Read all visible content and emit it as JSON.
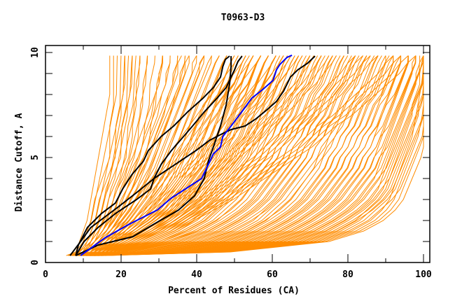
{
  "chart_data": {
    "type": "line",
    "title": "T0963-D3",
    "xlabel": "Percent of Residues (CA)",
    "ylabel": "Distance Cutoff, A",
    "xlim": [
      0,
      100
    ],
    "ylim": [
      0,
      10
    ],
    "x_ticks": [
      0,
      20,
      40,
      60,
      80,
      100
    ],
    "x_minor_ticks": [
      10,
      30,
      50,
      70,
      90
    ],
    "y_ticks": [
      0,
      5,
      10
    ],
    "y_minor_ticks": [
      1,
      2,
      3,
      4,
      6,
      7,
      8,
      9
    ],
    "grid": false,
    "legend": "none",
    "colors": {
      "other_models": "#ff8c00",
      "highlight_black": "#000000",
      "highlight_blue": "#0000ff"
    },
    "cutoff_levels": [
      0.33,
      0.5,
      1,
      1.5,
      2,
      2.5,
      3,
      3.5,
      4,
      4.5,
      5,
      5.5,
      6,
      6.5,
      7,
      7.5,
      8,
      8.5,
      9,
      9.5,
      9.85
    ],
    "other_models": [
      [
        5.5,
        8,
        10,
        11,
        12,
        12.5,
        13,
        14,
        15,
        16,
        17,
        17,
        17,
        17,
        17.5,
        18,
        18,
        18,
        18,
        18,
        18
      ],
      [
        6,
        9,
        11,
        13,
        14,
        15,
        15.5,
        16,
        17,
        17.5,
        18,
        18.5,
        19,
        19.5,
        20,
        20,
        20.5,
        21,
        21,
        21,
        21
      ],
      [
        6,
        9,
        12,
        14,
        16,
        17,
        18,
        19,
        20,
        21,
        22,
        22.5,
        23,
        23,
        23.5,
        24,
        24,
        24,
        24.5,
        25,
        25
      ],
      [
        6.5,
        10,
        13,
        15,
        17,
        19,
        20,
        21.5,
        22.5,
        23.5,
        24.5,
        25.5,
        26,
        27,
        28,
        28.5,
        29,
        30,
        30,
        31,
        31
      ],
      [
        6.5,
        10,
        13,
        16,
        18,
        20,
        21.5,
        23,
        24.5,
        26,
        27,
        28,
        29,
        30,
        31,
        32,
        33,
        34,
        35,
        35,
        36
      ],
      [
        7,
        11,
        14,
        17,
        20,
        22,
        24,
        25,
        27,
        28,
        29,
        30,
        31,
        32,
        33,
        34,
        35,
        36,
        37,
        38,
        38
      ],
      [
        7,
        11,
        15,
        19,
        22,
        24,
        26,
        28,
        29,
        31,
        32,
        33,
        34,
        35,
        36,
        37,
        38,
        39,
        40,
        41,
        42
      ],
      [
        7,
        12,
        16,
        20,
        23,
        26,
        28,
        30,
        32,
        33,
        34,
        36,
        37,
        38,
        39,
        40,
        42,
        43,
        44,
        45,
        46
      ],
      [
        7.5,
        12,
        17,
        21,
        25,
        28,
        30,
        32,
        34,
        35,
        37,
        38,
        39,
        40,
        42,
        43,
        44,
        45,
        46,
        47,
        48
      ],
      [
        7.5,
        13,
        18,
        23,
        27,
        30,
        32,
        34,
        36,
        38,
        39,
        40,
        42,
        43,
        44,
        45,
        46,
        48,
        49,
        50,
        51
      ],
      [
        8,
        13,
        19,
        24,
        28,
        31,
        34,
        36,
        38,
        40,
        41,
        42,
        44,
        45,
        46,
        47,
        48,
        50,
        51,
        52,
        53
      ],
      [
        8,
        14,
        20,
        25,
        29,
        33,
        35,
        37,
        39,
        41,
        43,
        44,
        45,
        47,
        48,
        49,
        51,
        52,
        53,
        54,
        55
      ],
      [
        8,
        15,
        21,
        26,
        31,
        34,
        37,
        39,
        41,
        43,
        45,
        46,
        48,
        49,
        50,
        51,
        53,
        54,
        55,
        56,
        57
      ],
      [
        8.5,
        15,
        22,
        28,
        32,
        36,
        39,
        41,
        43,
        45,
        47,
        48,
        50,
        51,
        52,
        54,
        55,
        56,
        57,
        58,
        59
      ],
      [
        8.5,
        16,
        24,
        30,
        34,
        38,
        41,
        43,
        45,
        47,
        49,
        50,
        52,
        53,
        55,
        56,
        57,
        58,
        60,
        61,
        62
      ],
      [
        9,
        17,
        26,
        32,
        36,
        40,
        43,
        45,
        47,
        49,
        51,
        53,
        54,
        56,
        57,
        58,
        60,
        61,
        62,
        63,
        64
      ],
      [
        9,
        18,
        28,
        34,
        39,
        42,
        45,
        48,
        50,
        52,
        54,
        55,
        57,
        58,
        60,
        61,
        62,
        64,
        65,
        66,
        67
      ],
      [
        9,
        19,
        30,
        37,
        42,
        45,
        48,
        50,
        53,
        55,
        57,
        58,
        60,
        61,
        63,
        64,
        65,
        67,
        68,
        69,
        70
      ],
      [
        9.5,
        20,
        32,
        40,
        45,
        49,
        52,
        54,
        56,
        58,
        60,
        61,
        63,
        64,
        66,
        67,
        68,
        70,
        71,
        72,
        73
      ],
      [
        9.5,
        22,
        35,
        43,
        48,
        52,
        55,
        57,
        59,
        61,
        63,
        64,
        66,
        67,
        69,
        70,
        71,
        73,
        74,
        75,
        76
      ],
      [
        10,
        24,
        38,
        46,
        51,
        55,
        58,
        60,
        62,
        64,
        66,
        67,
        69,
        70,
        72,
        73,
        74,
        76,
        77,
        78,
        79
      ],
      [
        10,
        26,
        41,
        50,
        55,
        58,
        61,
        63,
        65,
        67,
        69,
        70,
        72,
        73,
        75,
        76,
        77,
        79,
        80,
        81,
        82
      ],
      [
        10,
        28,
        44,
        53,
        58,
        62,
        65,
        67,
        69,
        71,
        72,
        74,
        75,
        77,
        78,
        79,
        81,
        82,
        83,
        84,
        85
      ],
      [
        10.5,
        30,
        47,
        56,
        61,
        65,
        68,
        70,
        72,
        74,
        75,
        77,
        78,
        80,
        81,
        82,
        84,
        85,
        86,
        87,
        88
      ],
      [
        10.5,
        32,
        50,
        59,
        64,
        68,
        71,
        73,
        75,
        77,
        78,
        80,
        81,
        83,
        84,
        85,
        87,
        88,
        89,
        90,
        90
      ],
      [
        11,
        34,
        53,
        62,
        67,
        71,
        74,
        76,
        78,
        80,
        81,
        83,
        84,
        86,
        87,
        88,
        89,
        90,
        91,
        92,
        92
      ],
      [
        11,
        36,
        56,
        65,
        70,
        74,
        77,
        79,
        81,
        83,
        84,
        86,
        87,
        88,
        89,
        90,
        91,
        92,
        93,
        94,
        94
      ],
      [
        11.5,
        38,
        59,
        68,
        73,
        77,
        80,
        82,
        84,
        86,
        87,
        88,
        89,
        90,
        91,
        92,
        93,
        94,
        95,
        96,
        96
      ],
      [
        12,
        40,
        62,
        71,
        76,
        80,
        83,
        85,
        87,
        88,
        89,
        90,
        91,
        92,
        93,
        94,
        95,
        96,
        97,
        97,
        98
      ],
      [
        12,
        42,
        65,
        74,
        79,
        83,
        86,
        88,
        89,
        90,
        91,
        92,
        93,
        94,
        95,
        96,
        97,
        98,
        98,
        99,
        99
      ],
      [
        12.5,
        44,
        68,
        77,
        82,
        85,
        88,
        90,
        91,
        92,
        93,
        94,
        95,
        96,
        97,
        97,
        98,
        99,
        99,
        99.5,
        100
      ],
      [
        13,
        46,
        72,
        81,
        86,
        89,
        91,
        92,
        93,
        94,
        95,
        96,
        97,
        97.5,
        98,
        98.5,
        99,
        99.5,
        99.8,
        100,
        100
      ],
      [
        6,
        8,
        9,
        10,
        11,
        11.5,
        12,
        12.5,
        13,
        13.5,
        14,
        14.5,
        15,
        15.5,
        16,
        16.5,
        17,
        17,
        17,
        17,
        17
      ],
      [
        7,
        10,
        12,
        14,
        15.5,
        17,
        18,
        19,
        20.5,
        21.5,
        23,
        24,
        25,
        26,
        27,
        28,
        29,
        30,
        30.5,
        31,
        31
      ],
      [
        8,
        12,
        16,
        18,
        20,
        22,
        24,
        26,
        28,
        30,
        32,
        34,
        36,
        38,
        40,
        42,
        44,
        46,
        48,
        50,
        51
      ],
      [
        8,
        13,
        17,
        20,
        23,
        26,
        29,
        32,
        34,
        37,
        40,
        42,
        45,
        47,
        49,
        52,
        54,
        56,
        58,
        60,
        61
      ],
      [
        9,
        14,
        19,
        23,
        27,
        31,
        34,
        38,
        41,
        44,
        47,
        50,
        53,
        55,
        58,
        61,
        63,
        66,
        68,
        70,
        71
      ],
      [
        9,
        16,
        22,
        27,
        32,
        36,
        40,
        44,
        48,
        51,
        55,
        58,
        61,
        64,
        67,
        70,
        73,
        75,
        78,
        80,
        82
      ],
      [
        10,
        18,
        25,
        31,
        36,
        41,
        46,
        50,
        54,
        58,
        62,
        66,
        69,
        72,
        76,
        79,
        82,
        85,
        88,
        90,
        92
      ]
    ],
    "highlighted_models": [
      {
        "name": "black-1",
        "color": "#000000",
        "points": [
          [
            8.0,
            0.33
          ],
          [
            8.7,
            0.83
          ],
          [
            11.1,
            1.67
          ],
          [
            14.8,
            2.33
          ],
          [
            18.5,
            2.83
          ],
          [
            20.4,
            3.5
          ],
          [
            22.8,
            4.17
          ],
          [
            25.9,
            4.83
          ],
          [
            27.2,
            5.33
          ],
          [
            30.6,
            6.0
          ],
          [
            33.9,
            6.5
          ],
          [
            37.6,
            7.17
          ],
          [
            41.7,
            7.83
          ],
          [
            44.4,
            8.33
          ],
          [
            46.3,
            8.83
          ],
          [
            46.9,
            9.33
          ],
          [
            47.6,
            9.67
          ],
          [
            48.7,
            9.83
          ]
        ]
      },
      {
        "name": "black-2",
        "color": "#000000",
        "points": [
          [
            8.0,
            0.33
          ],
          [
            10.2,
            1.0
          ],
          [
            13.9,
            1.67
          ],
          [
            18.5,
            2.33
          ],
          [
            24.1,
            3.0
          ],
          [
            27.8,
            3.5
          ],
          [
            28.7,
            4.0
          ],
          [
            30.6,
            4.67
          ],
          [
            33.3,
            5.33
          ],
          [
            35.7,
            5.83
          ],
          [
            38.9,
            6.5
          ],
          [
            42.0,
            7.17
          ],
          [
            45.4,
            7.83
          ],
          [
            47.8,
            8.33
          ],
          [
            49.1,
            8.83
          ],
          [
            50.0,
            9.17
          ],
          [
            50.9,
            9.57
          ],
          [
            52.0,
            9.83
          ]
        ]
      },
      {
        "name": "black-3",
        "color": "#000000",
        "points": [
          [
            8.0,
            0.33
          ],
          [
            13.9,
            0.83
          ],
          [
            23.1,
            1.23
          ],
          [
            28.7,
            1.83
          ],
          [
            35.2,
            2.5
          ],
          [
            39.4,
            3.17
          ],
          [
            42.0,
            4.0
          ],
          [
            43.1,
            4.83
          ],
          [
            44.4,
            5.5
          ],
          [
            46.3,
            6.5
          ],
          [
            47.8,
            7.5
          ],
          [
            48.7,
            8.5
          ],
          [
            49.1,
            9.33
          ],
          [
            49.1,
            9.83
          ]
        ]
      },
      {
        "name": "black-4",
        "color": "#000000",
        "points": [
          [
            6.5,
            0.33
          ],
          [
            9.3,
            1.0
          ],
          [
            12.0,
            1.67
          ],
          [
            15.7,
            2.17
          ],
          [
            19.4,
            2.67
          ],
          [
            24.1,
            3.33
          ],
          [
            28.7,
            4.0
          ],
          [
            34.3,
            4.67
          ],
          [
            39.8,
            5.33
          ],
          [
            43.5,
            5.83
          ],
          [
            47.2,
            6.17
          ],
          [
            49.1,
            6.33
          ],
          [
            52.8,
            6.5
          ],
          [
            55.6,
            6.83
          ],
          [
            58.3,
            7.23
          ],
          [
            61.1,
            7.67
          ],
          [
            63.0,
            8.17
          ],
          [
            64.8,
            8.83
          ],
          [
            66.7,
            9.17
          ],
          [
            69.4,
            9.5
          ],
          [
            71.3,
            9.83
          ]
        ]
      },
      {
        "name": "blue",
        "color": "#0000ff",
        "points": [
          [
            9.3,
            0.33
          ],
          [
            15.7,
            1.17
          ],
          [
            22.2,
            1.83
          ],
          [
            29.6,
            2.5
          ],
          [
            33.3,
            3.07
          ],
          [
            37.0,
            3.5
          ],
          [
            41.3,
            4.0
          ],
          [
            43.1,
            4.67
          ],
          [
            44.4,
            5.17
          ],
          [
            46.3,
            5.5
          ],
          [
            46.9,
            6.0
          ],
          [
            49.1,
            6.5
          ],
          [
            51.9,
            7.17
          ],
          [
            54.6,
            7.83
          ],
          [
            57.4,
            8.23
          ],
          [
            60.2,
            8.67
          ],
          [
            61.1,
            9.17
          ],
          [
            62.0,
            9.43
          ],
          [
            63.9,
            9.77
          ],
          [
            65.2,
            9.87
          ]
        ]
      }
    ]
  }
}
